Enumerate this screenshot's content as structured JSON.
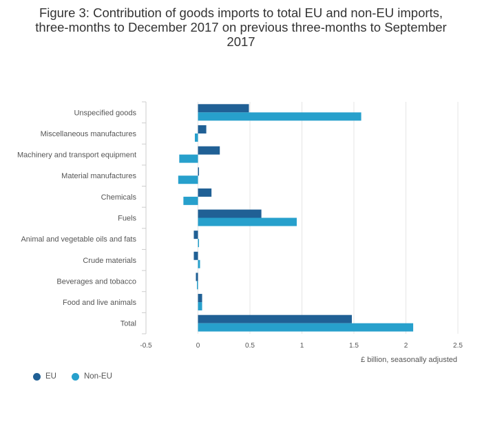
{
  "title_lines": [
    "Figure 3: Contribution of goods imports to total EU and non-EU imports,",
    "three-months to December 2017 on previous three-months to September",
    "2017"
  ],
  "colors": {
    "eu": "#206095",
    "non_eu": "#27a0cc",
    "grid": "#e5e5e5",
    "axis": "#cccccc"
  },
  "legend": [
    {
      "label": "EU",
      "color": "#206095"
    },
    {
      "label": "Non-EU",
      "color": "#27a0cc"
    }
  ],
  "chart_data": {
    "type": "bar",
    "orientation": "horizontal",
    "title": "Figure 3: Contribution of goods imports to total EU and non-EU imports, three-months to December 2017 on previous three-months to September 2017",
    "xlabel": "£ billion, seasonally adjusted",
    "ylabel": "",
    "xlim": [
      -0.5,
      2.5
    ],
    "xticks": [
      -0.5,
      0,
      0.5,
      1,
      1.5,
      2,
      2.5
    ],
    "xtick_labels": [
      "-0.5",
      "0",
      "0.5",
      "1",
      "1.5",
      "2",
      "2.5"
    ],
    "grid": true,
    "legend_position": "bottom-left",
    "categories": [
      "Unspecified goods",
      "Miscellaneous manufactures",
      "Machinery and transport equipment",
      "Material manufactures",
      "Chemicals",
      "Fuels",
      "Animal and vegetable oils and fats",
      "Crude materials",
      "Beverages and tobacco",
      "Food and live animals",
      "Total"
    ],
    "series": [
      {
        "name": "EU",
        "values": [
          0.49,
          0.08,
          0.21,
          0.01,
          0.13,
          0.61,
          -0.04,
          -0.04,
          -0.02,
          0.04,
          1.48
        ]
      },
      {
        "name": "Non-EU",
        "values": [
          1.57,
          -0.03,
          -0.18,
          -0.19,
          -0.14,
          0.95,
          0.01,
          0.02,
          -0.01,
          0.04,
          2.07
        ]
      }
    ]
  }
}
